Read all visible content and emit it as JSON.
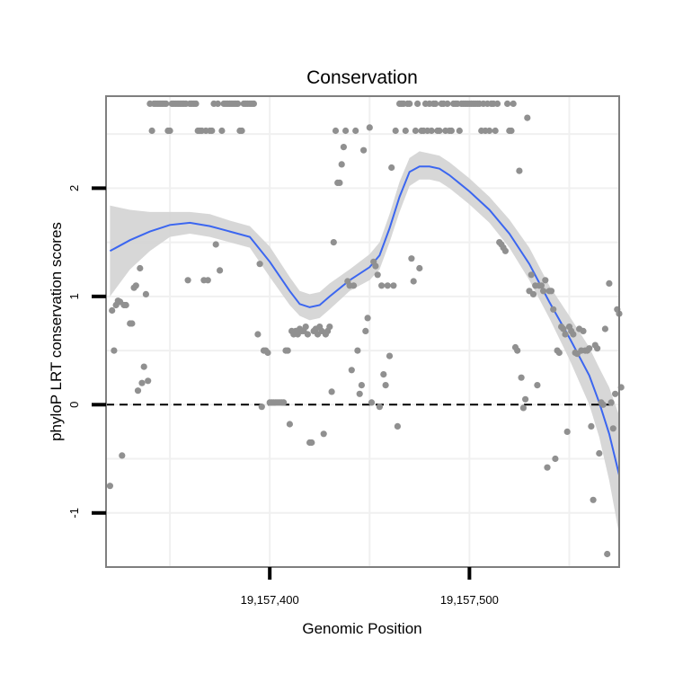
{
  "chart_data": {
    "type": "scatter",
    "title": "Conservation",
    "xlabel": "Genomic Position",
    "ylabel": "phyloP LRT conservation scores",
    "xlim": [
      19157318,
      19157575
    ],
    "ylim": [
      -1.5,
      2.85
    ],
    "x_ticks": [
      19157400,
      19157500
    ],
    "x_tick_labels": [
      "19,157,400",
      "19,157,500"
    ],
    "y_ticks": [
      -1,
      0,
      1,
      2
    ],
    "y_tick_labels": [
      "-1",
      "0",
      "1",
      "2"
    ],
    "grid": true,
    "reference_line": {
      "y": 0,
      "style": "dashed"
    },
    "colors": {
      "points": "#909090",
      "smooth": "#3b66f0",
      "band": "#d3d3d3",
      "frame": "#7f7f7f",
      "grid": "#f0f0f0"
    },
    "points": [
      [
        19157320,
        -0.75
      ],
      [
        19157321,
        0.87
      ],
      [
        19157322,
        0.5
      ],
      [
        19157323,
        0.92
      ],
      [
        19157324,
        0.96
      ],
      [
        19157325,
        0.95
      ],
      [
        19157326,
        -0.47
      ],
      [
        19157327,
        0.92
      ],
      [
        19157328,
        0.92
      ],
      [
        19157330,
        0.75
      ],
      [
        19157331,
        0.75
      ],
      [
        19157332,
        1.08
      ],
      [
        19157333,
        1.1
      ],
      [
        19157334,
        0.13
      ],
      [
        19157335,
        1.26
      ],
      [
        19157336,
        0.2
      ],
      [
        19157337,
        0.35
      ],
      [
        19157338,
        1.02
      ],
      [
        19157339,
        0.22
      ],
      [
        19157340,
        2.78
      ],
      [
        19157341,
        2.53
      ],
      [
        19157342,
        2.78
      ],
      [
        19157343,
        2.78
      ],
      [
        19157344,
        2.78
      ],
      [
        19157345,
        2.78
      ],
      [
        19157346,
        2.78
      ],
      [
        19157347,
        2.78
      ],
      [
        19157348,
        2.78
      ],
      [
        19157349,
        2.53
      ],
      [
        19157350,
        2.53
      ],
      [
        19157351,
        2.78
      ],
      [
        19157352,
        2.78
      ],
      [
        19157353,
        2.78
      ],
      [
        19157354,
        2.78
      ],
      [
        19157355,
        2.78
      ],
      [
        19157356,
        2.78
      ],
      [
        19157357,
        2.78
      ],
      [
        19157358,
        2.78
      ],
      [
        19157359,
        1.15
      ],
      [
        19157360,
        2.78
      ],
      [
        19157361,
        2.78
      ],
      [
        19157362,
        2.78
      ],
      [
        19157363,
        2.78
      ],
      [
        19157364,
        2.53
      ],
      [
        19157365,
        2.53
      ],
      [
        19157366,
        2.53
      ],
      [
        19157367,
        1.15
      ],
      [
        19157368,
        2.53
      ],
      [
        19157369,
        1.15
      ],
      [
        19157370,
        2.53
      ],
      [
        19157371,
        2.53
      ],
      [
        19157372,
        2.78
      ],
      [
        19157373,
        1.48
      ],
      [
        19157374,
        2.78
      ],
      [
        19157375,
        1.24
      ],
      [
        19157376,
        2.53
      ],
      [
        19157377,
        2.78
      ],
      [
        19157378,
        2.78
      ],
      [
        19157379,
        2.78
      ],
      [
        19157380,
        2.78
      ],
      [
        19157381,
        2.78
      ],
      [
        19157382,
        2.78
      ],
      [
        19157383,
        2.78
      ],
      [
        19157384,
        2.78
      ],
      [
        19157385,
        2.53
      ],
      [
        19157386,
        2.53
      ],
      [
        19157387,
        2.78
      ],
      [
        19157388,
        2.78
      ],
      [
        19157389,
        2.78
      ],
      [
        19157390,
        2.78
      ],
      [
        19157391,
        2.78
      ],
      [
        19157392,
        2.78
      ],
      [
        19157394,
        0.65
      ],
      [
        19157395,
        1.3
      ],
      [
        19157396,
        -0.02
      ],
      [
        19157397,
        0.5
      ],
      [
        19157398,
        0.5
      ],
      [
        19157399,
        0.48
      ],
      [
        19157400,
        0.02
      ],
      [
        19157401,
        0.02
      ],
      [
        19157402,
        0.02
      ],
      [
        19157403,
        0.02
      ],
      [
        19157404,
        0.02
      ],
      [
        19157405,
        0.02
      ],
      [
        19157406,
        0.02
      ],
      [
        19157407,
        0.02
      ],
      [
        19157408,
        0.5
      ],
      [
        19157409,
        0.5
      ],
      [
        19157410,
        -0.18
      ],
      [
        19157411,
        0.68
      ],
      [
        19157412,
        0.65
      ],
      [
        19157413,
        0.68
      ],
      [
        19157414,
        0.65
      ],
      [
        19157415,
        0.7
      ],
      [
        19157416,
        0.68
      ],
      [
        19157417,
        0.68
      ],
      [
        19157418,
        0.72
      ],
      [
        19157419,
        0.65
      ],
      [
        19157420,
        -0.35
      ],
      [
        19157421,
        -0.35
      ],
      [
        19157422,
        0.68
      ],
      [
        19157423,
        0.7
      ],
      [
        19157424,
        0.65
      ],
      [
        19157425,
        0.72
      ],
      [
        19157426,
        0.68
      ],
      [
        19157427,
        -0.27
      ],
      [
        19157428,
        0.65
      ],
      [
        19157429,
        0.68
      ],
      [
        19157430,
        0.72
      ],
      [
        19157431,
        0.12
      ],
      [
        19157432,
        1.5
      ],
      [
        19157433,
        2.53
      ],
      [
        19157434,
        2.05
      ],
      [
        19157435,
        2.05
      ],
      [
        19157436,
        2.22
      ],
      [
        19157437,
        2.38
      ],
      [
        19157438,
        2.53
      ],
      [
        19157439,
        1.14
      ],
      [
        19157440,
        1.1
      ],
      [
        19157441,
        0.32
      ],
      [
        19157442,
        1.1
      ],
      [
        19157443,
        2.53
      ],
      [
        19157444,
        0.5
      ],
      [
        19157445,
        0.1
      ],
      [
        19157446,
        0.18
      ],
      [
        19157447,
        2.35
      ],
      [
        19157448,
        0.68
      ],
      [
        19157449,
        0.8
      ],
      [
        19157450,
        2.56
      ],
      [
        19157451,
        0.02
      ],
      [
        19157452,
        1.32
      ],
      [
        19157453,
        1.28
      ],
      [
        19157454,
        1.2
      ],
      [
        19157455,
        -0.02
      ],
      [
        19157456,
        1.1
      ],
      [
        19157457,
        0.28
      ],
      [
        19157458,
        0.18
      ],
      [
        19157459,
        1.1
      ],
      [
        19157460,
        0.45
      ],
      [
        19157461,
        2.19
      ],
      [
        19157462,
        1.1
      ],
      [
        19157463,
        2.53
      ],
      [
        19157464,
        -0.2
      ],
      [
        19157465,
        2.78
      ],
      [
        19157466,
        2.78
      ],
      [
        19157467,
        2.78
      ],
      [
        19157468,
        2.53
      ],
      [
        19157469,
        2.78
      ],
      [
        19157470,
        2.78
      ],
      [
        19157471,
        1.35
      ],
      [
        19157472,
        1.14
      ],
      [
        19157473,
        2.53
      ],
      [
        19157474,
        2.78
      ],
      [
        19157475,
        1.26
      ],
      [
        19157476,
        2.53
      ],
      [
        19157477,
        2.53
      ],
      [
        19157478,
        2.78
      ],
      [
        19157479,
        2.53
      ],
      [
        19157480,
        2.78
      ],
      [
        19157481,
        2.53
      ],
      [
        19157482,
        2.78
      ],
      [
        19157483,
        2.78
      ],
      [
        19157484,
        2.53
      ],
      [
        19157485,
        2.53
      ],
      [
        19157486,
        2.78
      ],
      [
        19157487,
        2.78
      ],
      [
        19157488,
        2.53
      ],
      [
        19157489,
        2.78
      ],
      [
        19157490,
        2.53
      ],
      [
        19157491,
        2.53
      ],
      [
        19157492,
        2.78
      ],
      [
        19157493,
        2.78
      ],
      [
        19157494,
        2.78
      ],
      [
        19157495,
        2.53
      ],
      [
        19157496,
        2.78
      ],
      [
        19157497,
        2.78
      ],
      [
        19157498,
        2.78
      ],
      [
        19157499,
        2.78
      ],
      [
        19157500,
        2.78
      ],
      [
        19157501,
        2.78
      ],
      [
        19157502,
        2.78
      ],
      [
        19157503,
        2.78
      ],
      [
        19157504,
        2.78
      ],
      [
        19157505,
        2.78
      ],
      [
        19157506,
        2.53
      ],
      [
        19157507,
        2.78
      ],
      [
        19157508,
        2.53
      ],
      [
        19157509,
        2.78
      ],
      [
        19157510,
        2.53
      ],
      [
        19157511,
        2.78
      ],
      [
        19157512,
        2.78
      ],
      [
        19157513,
        2.53
      ],
      [
        19157514,
        2.78
      ],
      [
        19157515,
        1.5
      ],
      [
        19157516,
        1.48
      ],
      [
        19157517,
        1.45
      ],
      [
        19157518,
        1.42
      ],
      [
        19157519,
        2.78
      ],
      [
        19157520,
        2.53
      ],
      [
        19157521,
        2.53
      ],
      [
        19157522,
        2.78
      ],
      [
        19157523,
        0.53
      ],
      [
        19157524,
        0.5
      ],
      [
        19157525,
        2.16
      ],
      [
        19157526,
        0.25
      ],
      [
        19157527,
        -0.03
      ],
      [
        19157528,
        0.05
      ],
      [
        19157529,
        2.65
      ],
      [
        19157530,
        1.05
      ],
      [
        19157531,
        1.2
      ],
      [
        19157532,
        1.02
      ],
      [
        19157533,
        1.1
      ],
      [
        19157534,
        0.18
      ],
      [
        19157535,
        1.1
      ],
      [
        19157536,
        1.1
      ],
      [
        19157537,
        1.05
      ],
      [
        19157538,
        1.15
      ],
      [
        19157539,
        -0.58
      ],
      [
        19157540,
        1.05
      ],
      [
        19157541,
        1.05
      ],
      [
        19157542,
        0.88
      ],
      [
        19157543,
        -0.5
      ],
      [
        19157544,
        0.5
      ],
      [
        19157545,
        0.48
      ],
      [
        19157546,
        0.72
      ],
      [
        19157547,
        0.7
      ],
      [
        19157548,
        0.65
      ],
      [
        19157549,
        -0.25
      ],
      [
        19157550,
        0.72
      ],
      [
        19157551,
        0.68
      ],
      [
        19157552,
        0.65
      ],
      [
        19157553,
        0.48
      ],
      [
        19157554,
        0.47
      ],
      [
        19157555,
        0.7
      ],
      [
        19157556,
        0.5
      ],
      [
        19157557,
        0.68
      ],
      [
        19157558,
        0.5
      ],
      [
        19157559,
        0.5
      ],
      [
        19157560,
        0.52
      ],
      [
        19157561,
        -0.2
      ],
      [
        19157562,
        -0.88
      ],
      [
        19157563,
        0.55
      ],
      [
        19157564,
        0.52
      ],
      [
        19157565,
        -0.45
      ],
      [
        19157566,
        0.02
      ],
      [
        19157567,
        0.0
      ],
      [
        19157568,
        0.7
      ],
      [
        19157569,
        -1.38
      ],
      [
        19157570,
        1.12
      ],
      [
        19157571,
        0.02
      ],
      [
        19157572,
        -0.22
      ],
      [
        19157573,
        0.1
      ],
      [
        19157574,
        0.88
      ],
      [
        19157575,
        0.84
      ],
      [
        19157576,
        0.16
      ]
    ],
    "smooth": {
      "x": [
        19157320,
        19157330,
        19157340,
        19157350,
        19157360,
        19157370,
        19157380,
        19157390,
        19157400,
        19157410,
        19157415,
        19157420,
        19157425,
        19157430,
        19157440,
        19157450,
        19157455,
        19157460,
        19157465,
        19157470,
        19157475,
        19157480,
        19157485,
        19157490,
        19157500,
        19157510,
        19157520,
        19157530,
        19157540,
        19157550,
        19157560,
        19157565,
        19157570,
        19157575
      ],
      "y": [
        1.42,
        1.52,
        1.6,
        1.66,
        1.68,
        1.65,
        1.6,
        1.55,
        1.32,
        1.05,
        0.93,
        0.9,
        0.92,
        1.0,
        1.15,
        1.27,
        1.38,
        1.63,
        1.92,
        2.15,
        2.2,
        2.2,
        2.18,
        2.12,
        1.97,
        1.8,
        1.58,
        1.3,
        0.95,
        0.62,
        0.27,
        0.02,
        -0.27,
        -0.65
      ],
      "lower": [
        1.0,
        1.25,
        1.42,
        1.55,
        1.58,
        1.55,
        1.5,
        1.45,
        1.18,
        0.92,
        0.82,
        0.78,
        0.8,
        0.88,
        1.05,
        1.15,
        1.25,
        1.5,
        1.78,
        2.02,
        2.08,
        2.08,
        2.06,
        2.0,
        1.85,
        1.68,
        1.45,
        1.15,
        0.8,
        0.42,
        0.0,
        -0.3,
        -0.7,
        -1.2
      ],
      "upper": [
        1.84,
        1.8,
        1.78,
        1.78,
        1.78,
        1.76,
        1.7,
        1.65,
        1.46,
        1.18,
        1.05,
        1.02,
        1.04,
        1.12,
        1.25,
        1.39,
        1.5,
        1.76,
        2.06,
        2.28,
        2.34,
        2.32,
        2.3,
        2.24,
        2.09,
        1.92,
        1.71,
        1.45,
        1.1,
        0.82,
        0.53,
        0.34,
        0.16,
        -0.1
      ]
    }
  }
}
